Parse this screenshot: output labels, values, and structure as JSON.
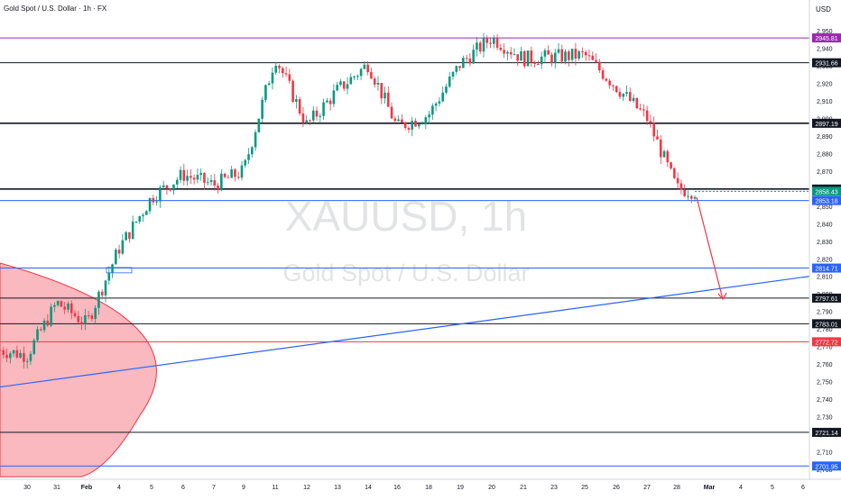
{
  "header": {
    "title": "Gold Spot / U.S. Dollar · 1h · FX"
  },
  "currency": "USD",
  "watermark": {
    "symbol": "XAUUSD, 1h",
    "name": "Gold Spot / U.S. Dollar"
  },
  "colors": {
    "up": "#089981",
    "down": "#f23645",
    "axis_text": "#131722",
    "ray": "#2962ff"
  },
  "chart_data": {
    "type": "candlestick",
    "y_axis": {
      "ticks": [
        2700,
        2710,
        2720,
        2730,
        2740,
        2750,
        2760,
        2770,
        2780,
        2790,
        2800,
        2810,
        2820,
        2830,
        2840,
        2850,
        2860,
        2870,
        2880,
        2890,
        2900,
        2910,
        2920,
        2930,
        2940,
        2950
      ],
      "range": [
        2699,
        2958
      ]
    },
    "x_axis": {
      "labels": [
        "30",
        "31",
        "Feb",
        "4",
        "5",
        "6",
        "7",
        "9",
        "11",
        "12",
        "13",
        "14",
        "16",
        "18",
        "19",
        "20",
        "21",
        "23",
        "25",
        "26",
        "27",
        "28",
        "Mar",
        "4",
        "5",
        "6"
      ]
    },
    "price_path": [
      {
        "label": "30",
        "price": 2765
      },
      {
        "label": "31",
        "price": 2795
      },
      {
        "label": "Feb",
        "price": 2783
      },
      {
        "label": "4",
        "price": 2826
      },
      {
        "label": "5",
        "price": 2855
      },
      {
        "label": "6",
        "price": 2868
      },
      {
        "label": "7",
        "price": 2862
      },
      {
        "label": "9",
        "price": 2870
      },
      {
        "label": "11",
        "price": 2935
      },
      {
        "label": "12",
        "price": 2896
      },
      {
        "label": "13",
        "price": 2916
      },
      {
        "label": "14",
        "price": 2931
      },
      {
        "label": "16",
        "price": 2895
      },
      {
        "label": "18",
        "price": 2902
      },
      {
        "label": "19",
        "price": 2931
      },
      {
        "label": "20",
        "price": 2946
      },
      {
        "label": "21",
        "price": 2934
      },
      {
        "label": "23",
        "price": 2935
      },
      {
        "label": "25",
        "price": 2936
      },
      {
        "label": "26",
        "price": 2918
      },
      {
        "label": "27",
        "price": 2900
      },
      {
        "label": "28",
        "price": 2860
      }
    ],
    "last_price": 2858.43,
    "levels": [
      {
        "price": 2945.81,
        "color": "#9c27b0",
        "style": "solid"
      },
      {
        "price": 2931.66,
        "color": "#131722",
        "style": "solid"
      },
      {
        "price": 2897.19,
        "color": "#131722",
        "style": "thick"
      },
      {
        "price": 2859.74,
        "color": "#131722",
        "style": "thick"
      },
      {
        "price": 2858.43,
        "color": "#089981",
        "style": "last"
      },
      {
        "price": 2853.18,
        "color": "#2962ff",
        "style": "solid"
      },
      {
        "price": 2814.71,
        "color": "#2962ff",
        "style": "solid"
      },
      {
        "price": 2797.61,
        "color": "#131722",
        "style": "solid"
      },
      {
        "price": 2783.01,
        "color": "#131722",
        "style": "solid"
      },
      {
        "price": 2772.72,
        "color": "#f23645",
        "style": "solid"
      },
      {
        "price": 2721.14,
        "color": "#131722",
        "style": "solid"
      },
      {
        "price": 2701.95,
        "color": "#2962ff",
        "style": "solid"
      }
    ],
    "trendline": {
      "from": {
        "label": "30",
        "price": 2748
      },
      "to": {
        "label": "6",
        "price": 2810
      }
    },
    "projection_arrow": {
      "from": {
        "label": "28",
        "price": 2853
      },
      "to": {
        "label": "Mar",
        "price": 2797
      }
    },
    "shaded_zone": {
      "color": "#f23645",
      "price_top": 2815,
      "price_bottom": 2700
    },
    "consolidation_box": {
      "from_label": "4",
      "to_label": "5",
      "price_top": 2815,
      "price_bottom": 2812
    }
  }
}
